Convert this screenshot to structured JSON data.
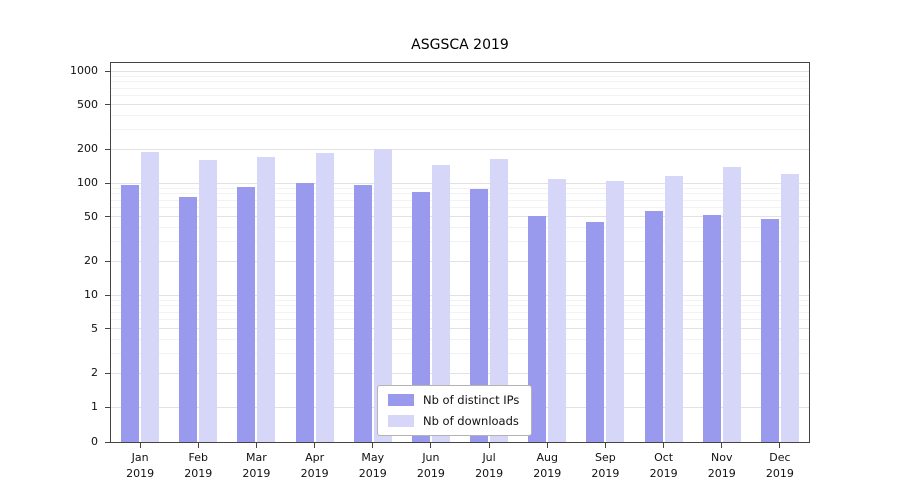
{
  "chart_data": {
    "type": "bar",
    "title": "ASGSCA 2019",
    "categories": [
      "Jan 2019",
      "Feb 2019",
      "Mar 2019",
      "Apr 2019",
      "May 2019",
      "Jun 2019",
      "Jul 2019",
      "Aug 2019",
      "Sep 2019",
      "Oct 2019",
      "Nov 2019",
      "Dec 2019"
    ],
    "series": [
      {
        "name": "Nb of distinct IPs",
        "color": "#9999ee",
        "values": [
          95,
          75,
          92,
          100,
          95,
          83,
          89,
          51,
          45,
          56,
          52,
          48
        ]
      },
      {
        "name": "Nb of downloads",
        "color": "#d6d6f9",
        "values": [
          190,
          160,
          170,
          185,
          200,
          145,
          165,
          108,
          105,
          115,
          140,
          120
        ]
      }
    ],
    "y_scale": "log",
    "y_ticks": [
      0,
      1,
      2,
      5,
      10,
      20,
      50,
      100,
      200,
      500,
      1000
    ],
    "ylim": [
      0,
      1300
    ],
    "xlabel": "",
    "ylabel": "",
    "grid": true,
    "legend_position": "inside-bottom-center"
  }
}
